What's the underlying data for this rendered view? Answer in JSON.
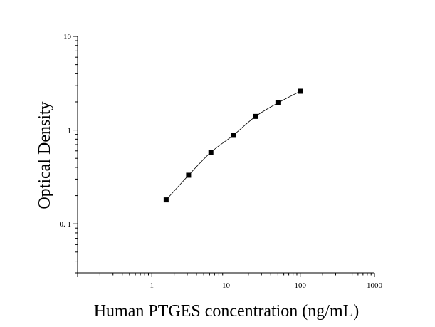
{
  "chart_data": {
    "type": "scatter",
    "title": "",
    "xlabel": "Human PTGES concentration (ng/mL)",
    "ylabel": "Optical Density",
    "x_scale": "log",
    "y_scale": "log",
    "xlim": [
      0.1,
      1000
    ],
    "ylim": [
      0.03,
      10
    ],
    "x_ticks": [
      1,
      10,
      100,
      1000
    ],
    "x_tick_labels": [
      "1",
      "10",
      "100",
      "1000"
    ],
    "y_ticks": [
      0.1,
      1,
      10
    ],
    "y_tick_labels": [
      "0. 1",
      "1",
      "10"
    ],
    "grid": false,
    "legend": "none",
    "series": [
      {
        "x": [
          1.56,
          3.13,
          6.25,
          12.5,
          25,
          50,
          100
        ],
        "y": [
          0.18,
          0.33,
          0.58,
          0.88,
          1.4,
          1.95,
          2.6
        ],
        "marker": "square",
        "color": "#000000",
        "fit_line": true
      }
    ]
  }
}
